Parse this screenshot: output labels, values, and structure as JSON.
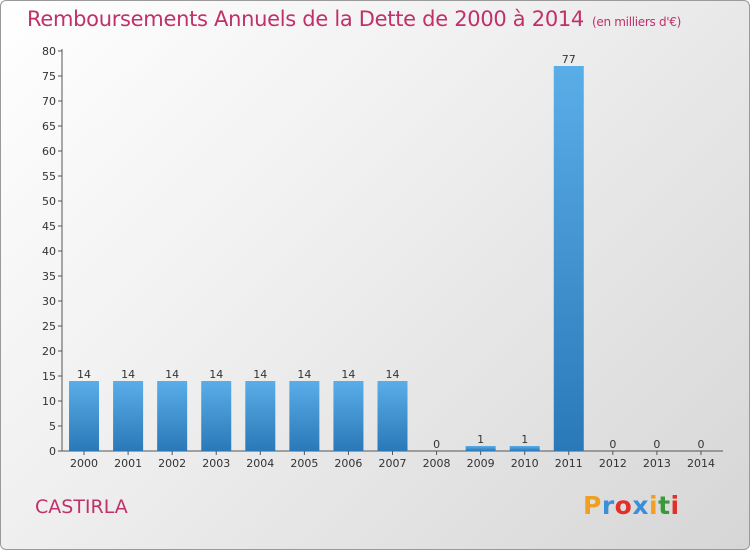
{
  "chart_data": {
    "type": "bar",
    "title": "Remboursements Annuels de la Dette de 2000 à 2014",
    "unit": "(en milliers d'€)",
    "categories": [
      "2000",
      "2001",
      "2002",
      "2003",
      "2004",
      "2005",
      "2006",
      "2007",
      "2008",
      "2009",
      "2010",
      "2011",
      "2012",
      "2013",
      "2014"
    ],
    "values": [
      14,
      14,
      14,
      14,
      14,
      14,
      14,
      14,
      0,
      1,
      1,
      77,
      0,
      0,
      0
    ],
    "ylim": [
      0,
      80
    ],
    "yticks": [
      0,
      5,
      10,
      15,
      20,
      25,
      30,
      35,
      40,
      45,
      50,
      55,
      60,
      65,
      70,
      75,
      80
    ],
    "grid": false,
    "bar_color": "#4a9ee0"
  },
  "footer": {
    "town": "CASTIRLA",
    "logo": "Proxiti",
    "logo_colors": [
      "#f0a020",
      "#3a8fd8",
      "#e0302a",
      "#3a8fd8",
      "#f0a020",
      "#3a9a3a",
      "#e0302a"
    ]
  }
}
